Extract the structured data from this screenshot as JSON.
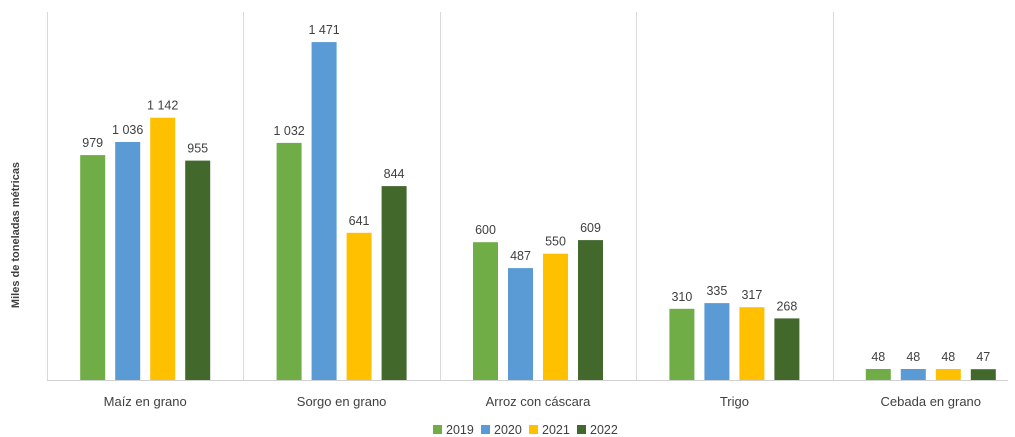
{
  "chart_data": {
    "type": "bar",
    "ylabel": "Miles de toneladas métricas",
    "categories": [
      "Maíz en grano",
      "Sorgo en grano",
      "Arroz con cáscara",
      "Trigo",
      "Cebada en grano"
    ],
    "series": [
      {
        "name": "2019",
        "color": "#70AD47",
        "values": [
          979,
          1032,
          600,
          310,
          48
        ],
        "labels": [
          "979",
          "1 032",
          "600",
          "310",
          "48"
        ]
      },
      {
        "name": "2020",
        "color": "#5B9BD5",
        "values": [
          1036,
          1471,
          487,
          335,
          48
        ],
        "labels": [
          "1 036",
          "1 471",
          "487",
          "335",
          "48"
        ]
      },
      {
        "name": "2021",
        "color": "#FFC000",
        "values": [
          1142,
          641,
          550,
          317,
          48
        ],
        "labels": [
          "1 142",
          "641",
          "550",
          "317",
          "48"
        ]
      },
      {
        "name": "2022",
        "color": "#43682B",
        "values": [
          955,
          844,
          609,
          268,
          47
        ],
        "labels": [
          "955",
          "844",
          "609",
          "268",
          "47"
        ]
      }
    ],
    "ylim": [
      0,
      1550
    ],
    "grid": false,
    "legend_position": "bottom"
  }
}
